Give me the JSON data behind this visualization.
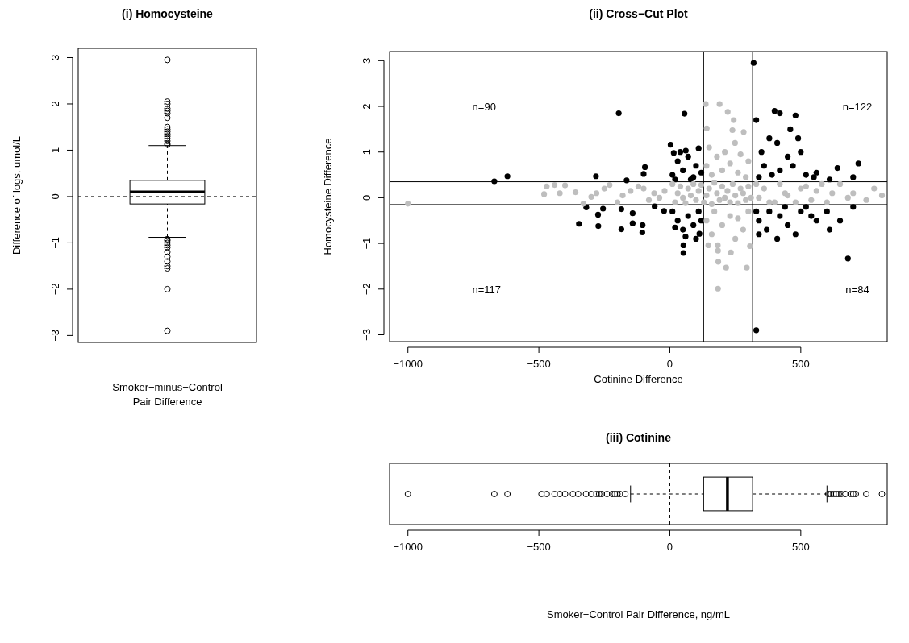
{
  "chart_data": [
    {
      "type": "box",
      "title": "(i) Homocysteine",
      "xlabel": "Smoker−minus−Control\nPair Difference",
      "ylabel": "Difference of logs, umol/L",
      "categories": [
        null
      ],
      "ylim": [
        -3.15,
        3.2
      ],
      "yticks": [
        -3,
        -2,
        -1,
        0,
        1,
        2,
        3
      ],
      "tick_labels": "y",
      "ref_lines": [
        {
          "axis": "y",
          "value": 0,
          "line_style": "dashed"
        }
      ],
      "boxes": [
        {
          "low": -0.88,
          "q1": -0.16,
          "median": 0.1,
          "q3": 0.35,
          "high": 1.1,
          "outliers": [
            1.12,
            1.15,
            1.2,
            1.25,
            1.3,
            1.35,
            1.4,
            1.45,
            1.5,
            1.7,
            1.8,
            1.85,
            1.9,
            2.0,
            2.05,
            2.95,
            -0.92,
            -0.95,
            -1.0,
            -1.05,
            -1.1,
            -1.2,
            -1.3,
            -1.4,
            -1.5,
            -1.55,
            -2.0,
            -2.9
          ]
        }
      ]
    },
    {
      "type": "scatter",
      "title": "(ii)  Cross−Cut Plot",
      "xlabel": "Cotinine Difference",
      "ylabel": "Homocysteine Difference",
      "xlim": [
        -1070,
        830
      ],
      "xticks": [
        -1000,
        -500,
        0,
        500
      ],
      "ylim": [
        -3.15,
        3.2
      ],
      "yticks": [
        -3,
        -2,
        -1,
        0,
        1,
        2,
        3
      ],
      "marker": "circle",
      "ref_lines": [
        {
          "axis": "x",
          "value": 129
        },
        {
          "axis": "x",
          "value": 316
        },
        {
          "axis": "y",
          "value": 0.35
        },
        {
          "axis": "y",
          "value": -0.15
        }
      ],
      "annotations": [
        "n=90",
        "n=122",
        "n=117",
        "n=84"
      ],
      "series": [
        {
          "color": "#000000",
          "x": [
            -670,
            -620,
            -282,
            -165,
            -95,
            -100,
            -195,
            56,
            3,
            15,
            61,
            110,
            10,
            30,
            50,
            70,
            90,
            100,
            120,
            20,
            80,
            40,
            -347,
            -319,
            -274,
            -273,
            -255,
            -185,
            -185,
            -142,
            -142,
            -104,
            -105,
            -58,
            -22,
            10,
            30,
            50,
            70,
            90,
            110,
            120,
            20,
            60,
            52,
            52,
            113,
            100,
            320,
            480,
            400,
            420,
            460,
            410,
            380,
            350,
            500,
            490,
            450,
            360,
            420,
            470,
            330,
            550,
            520,
            560,
            610,
            640,
            700,
            720,
            340,
            390,
            330,
            680,
            340,
            380,
            420,
            450,
            500,
            520,
            560,
            600,
            610,
            650,
            700,
            480,
            410,
            370,
            340,
            440,
            540,
            330
          ],
          "values": [
            0.36,
            0.47,
            0.47,
            0.38,
            0.67,
            0.52,
            1.85,
            1.84,
            1.16,
            0.98,
            1.03,
            1.08,
            0.5,
            0.8,
            0.6,
            0.9,
            0.45,
            0.7,
            0.55,
            0.4,
            0.4,
            1.0,
            -0.57,
            -0.21,
            -0.37,
            -0.62,
            -0.24,
            -0.25,
            -0.69,
            -0.34,
            -0.56,
            -0.6,
            -0.76,
            -0.19,
            -0.29,
            -0.3,
            -0.5,
            -0.7,
            -0.4,
            -0.6,
            -0.3,
            -0.5,
            -0.65,
            -0.85,
            -1.04,
            -1.21,
            -0.79,
            -0.9,
            2.95,
            1.8,
            1.9,
            1.85,
            1.5,
            1.2,
            1.3,
            1.0,
            1.0,
            1.3,
            0.9,
            0.7,
            0.6,
            0.7,
            1.7,
            0.45,
            0.5,
            0.55,
            0.4,
            0.65,
            0.45,
            0.75,
            0.45,
            0.5,
            -2.9,
            -1.33,
            -0.5,
            -0.3,
            -0.4,
            -0.6,
            -0.3,
            -0.2,
            -0.5,
            -0.3,
            -0.7,
            -0.5,
            -0.2,
            -0.8,
            -0.9,
            -0.7,
            -0.8,
            -0.2,
            -0.4,
            -0.3
          ]
        },
        {
          "color": "#bebebe",
          "x": [
            -1000,
            -470,
            -480,
            -440,
            -400,
            -420,
            -360,
            -330,
            -300,
            -280,
            -250,
            -230,
            -200,
            -180,
            -150,
            -120,
            -100,
            -80,
            -60,
            -40,
            -20,
            10,
            20,
            30,
            40,
            50,
            60,
            70,
            80,
            90,
            100,
            110,
            120,
            130,
            140,
            150,
            160,
            170,
            180,
            190,
            200,
            210,
            220,
            230,
            240,
            250,
            260,
            270,
            280,
            290,
            300,
            310,
            137,
            190,
            221,
            244,
            141,
            239,
            282,
            249,
            150,
            180,
            210,
            270,
            300,
            140,
            200,
            260,
            230,
            160,
            290,
            183,
            184,
            233,
            185,
            215,
            294,
            184,
            147,
            306,
            160,
            250,
            280,
            200,
            140,
            230,
            300,
            170,
            260,
            330,
            340,
            360,
            380,
            400,
            420,
            440,
            450,
            480,
            500,
            520,
            540,
            560,
            580,
            600,
            620,
            650,
            680,
            700,
            750,
            780,
            810
          ],
          "values": [
            -0.13,
            0.25,
            0.08,
            0.28,
            0.27,
            0.1,
            0.12,
            -0.13,
            0.02,
            0.1,
            0.2,
            0.28,
            -0.1,
            0.05,
            0.15,
            0.25,
            0.2,
            -0.05,
            0.1,
            0.0,
            0.15,
            0.3,
            -0.1,
            0.1,
            0.25,
            0.0,
            -0.12,
            0.2,
            0.05,
            0.3,
            -0.05,
            0.15,
            0.28,
            -0.1,
            0.05,
            0.2,
            -0.14,
            0.33,
            0.1,
            -0.05,
            0.25,
            0.0,
            0.15,
            -0.1,
            0.3,
            0.05,
            -0.12,
            0.2,
            0.1,
            -0.05,
            0.25,
            0.0,
            2.05,
            2.05,
            1.88,
            1.7,
            1.52,
            1.48,
            1.44,
            1.2,
            1.1,
            0.9,
            1.0,
            0.95,
            0.8,
            0.7,
            0.6,
            0.55,
            0.75,
            0.5,
            0.45,
            -1.04,
            -1.16,
            -1.2,
            -1.4,
            -1.53,
            -1.53,
            -1.99,
            -1.04,
            -1.06,
            -0.8,
            -0.9,
            -0.7,
            -0.6,
            -0.5,
            -0.4,
            -0.3,
            -0.3,
            -0.45,
            0.3,
            0.0,
            0.2,
            -0.1,
            -0.1,
            0.3,
            0.1,
            0.05,
            -0.1,
            0.2,
            0.25,
            -0.05,
            0.15,
            0.3,
            -0.1,
            0.1,
            0.3,
            0.0,
            0.1,
            -0.05,
            0.2,
            0.05
          ]
        }
      ]
    },
    {
      "type": "box",
      "orientation": "horizontal",
      "title": "(iii)  Cotinine",
      "xlabel": "Smoker−Control Pair Difference, ng/mL",
      "categories": [
        null
      ],
      "xlim": [
        -1070,
        830
      ],
      "xticks": [
        -1000,
        -500,
        0,
        500
      ],
      "tick_labels": "x",
      "ref_lines": [
        {
          "axis": "x",
          "value": 0,
          "line_style": "dashed"
        }
      ],
      "boxes": [
        {
          "low": -150,
          "q1": 129,
          "median": 220,
          "q3": 316,
          "high": 600,
          "outliers": [
            -1000,
            -670,
            -620,
            -490,
            -470,
            -440,
            -420,
            -400,
            -370,
            -350,
            -320,
            -300,
            -280,
            -270,
            -260,
            -240,
            -220,
            -210,
            -200,
            -190,
            -170,
            605,
            615,
            625,
            635,
            645,
            655,
            670,
            690,
            700,
            710,
            750,
            810
          ]
        }
      ]
    }
  ]
}
